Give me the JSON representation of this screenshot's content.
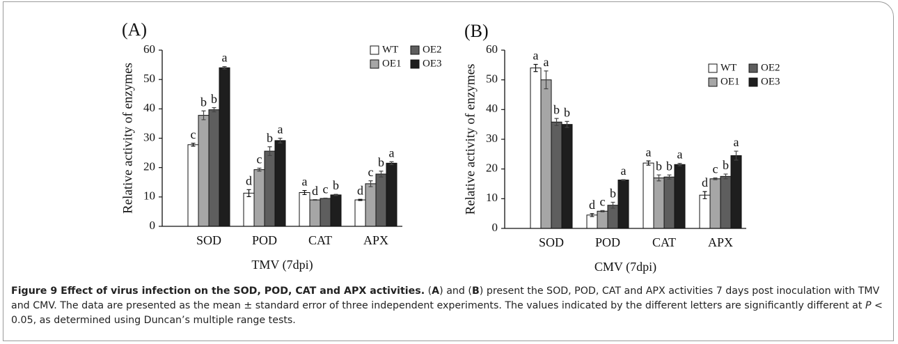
{
  "chart_data": [
    {
      "type": "bar",
      "panel": "(A)",
      "ylabel": "Relative activity of enzymes",
      "xlabel": "TMV (7dpi)",
      "categories": [
        "SOD",
        "POD",
        "CAT",
        "APX"
      ],
      "ylim": [
        0,
        60
      ],
      "yticks": [
        0,
        10,
        20,
        30,
        40,
        50,
        60
      ],
      "legend": "top-right",
      "series": [
        {
          "name": "WT",
          "color": "#ffffff",
          "values": [
            27.8,
            11.3,
            11.5,
            9.0
          ],
          "errors": [
            0.5,
            1.2,
            0.7,
            0.2
          ],
          "letters": [
            "c",
            "d",
            "a",
            "d"
          ]
        },
        {
          "name": "OE1",
          "color": "#a6a6a6",
          "values": [
            37.8,
            19.3,
            9.0,
            14.5
          ],
          "errors": [
            1.5,
            0.5,
            0.1,
            1.0
          ],
          "letters": [
            "b",
            "c",
            "d",
            "c"
          ]
        },
        {
          "name": "OE2",
          "color": "#5e5e5e",
          "values": [
            39.7,
            25.6,
            9.5,
            17.8
          ],
          "errors": [
            0.7,
            1.5,
            0.1,
            1.0
          ],
          "letters": [
            "b",
            "b",
            "c",
            "b"
          ]
        },
        {
          "name": "OE3",
          "color": "#1e1e1e",
          "values": [
            54.0,
            29.2,
            10.7,
            21.5
          ],
          "errors": [
            0.4,
            0.8,
            0.2,
            0.5
          ],
          "letters": [
            "a",
            "a",
            "b",
            "a"
          ]
        }
      ]
    },
    {
      "type": "bar",
      "panel": "(B)",
      "ylabel": "Relative activity of enzymes",
      "xlabel": "CMV (7dpi)",
      "categories": [
        "SOD",
        "POD",
        "CAT",
        "APX"
      ],
      "ylim": [
        0,
        60
      ],
      "yticks": [
        0,
        10,
        20,
        30,
        40,
        50,
        60
      ],
      "legend": "top-right",
      "series": [
        {
          "name": "WT",
          "color": "#ffffff",
          "values": [
            54.0,
            4.5,
            22.0,
            11.2
          ],
          "errors": [
            1.2,
            0.5,
            0.7,
            1.2
          ],
          "letters": [
            "a",
            "d",
            "a",
            "d"
          ]
        },
        {
          "name": "OE1",
          "color": "#a6a6a6",
          "values": [
            50.0,
            5.8,
            17.0,
            16.7
          ],
          "errors": [
            3.0,
            0.2,
            1.0,
            0.3
          ],
          "letters": [
            "a",
            "c",
            "b",
            "c"
          ]
        },
        {
          "name": "OE2",
          "color": "#5e5e5e",
          "values": [
            35.8,
            7.8,
            17.3,
            17.5
          ],
          "errors": [
            1.2,
            1.0,
            0.7,
            0.8
          ],
          "letters": [
            "b",
            "b",
            "b",
            "b"
          ]
        },
        {
          "name": "OE3",
          "color": "#1e1e1e",
          "values": [
            35.0,
            16.3,
            21.5,
            24.5
          ],
          "errors": [
            1.0,
            0.1,
            0.4,
            1.5
          ],
          "letters": [
            "b",
            "a",
            "a",
            "a"
          ]
        }
      ]
    }
  ],
  "caption": {
    "runs": [
      {
        "text": "Figure 9 Effect of virus infection on the SOD, POD, CAT and APX activities.",
        "style": "bold"
      },
      {
        "text": " (",
        "style": "normal"
      },
      {
        "text": "A",
        "style": "bold"
      },
      {
        "text": ") and (",
        "style": "normal"
      },
      {
        "text": "B",
        "style": "bold"
      },
      {
        "text": ") present the SOD, POD, CAT and APX activities 7 days post inoculation with TMV and CMV. The data are presented as the mean ± standard error of three independent experiments. The values indicated by the different letters are significantly different at ",
        "style": "normal"
      },
      {
        "text": "P",
        "style": "italic"
      },
      {
        "text": " < 0.05, as determined using Duncan’s multiple range tests.",
        "style": "normal"
      }
    ]
  }
}
